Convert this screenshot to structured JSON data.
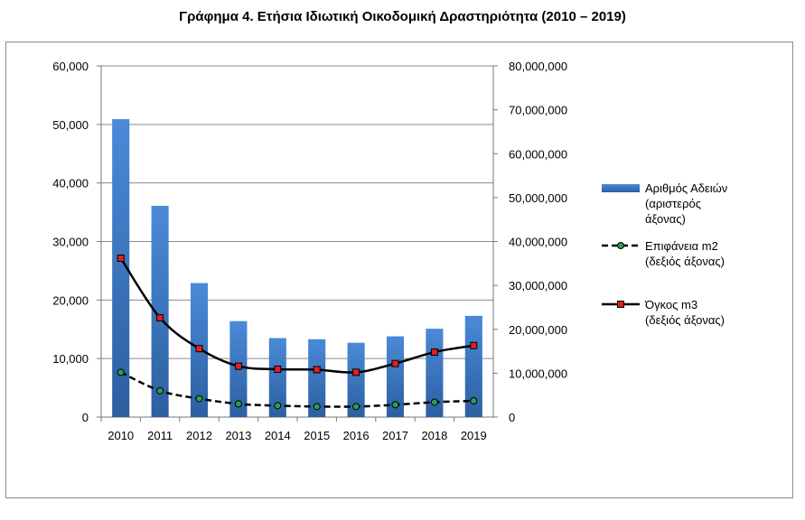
{
  "chart_data": {
    "type": "bar",
    "title": "Γράφημα 4. Ετήσια Ιδιωτική Οικοδομική Δραστηριότητα (2010 – 2019)",
    "categories": [
      "2010",
      "2011",
      "2012",
      "2013",
      "2014",
      "2015",
      "2016",
      "2017",
      "2018",
      "2019"
    ],
    "y_left": {
      "min": 0,
      "max": 60000,
      "ticks": [
        "0",
        "10,000",
        "20,000",
        "30,000",
        "40,000",
        "50,000",
        "60,000"
      ]
    },
    "y_right": {
      "min": 0,
      "max": 80000000,
      "ticks": [
        "0",
        "10,000,000",
        "20,000,000",
        "30,000,000",
        "40,000,000",
        "50,000,000",
        "60,000,000",
        "70,000,000",
        "80,000,000"
      ]
    },
    "grid": true,
    "legend_position": "right",
    "series": [
      {
        "name": "Αριθμός Αδειών (αριστερός άξονας)",
        "legend_lines": [
          "Αριθμός Αδειών",
          "(αριστερός",
          "άξονας)"
        ],
        "type": "bar",
        "axis": "left",
        "color": "#3f7fc9",
        "values": [
          50900,
          36100,
          22900,
          16400,
          13500,
          13300,
          12700,
          13800,
          15100,
          17300
        ]
      },
      {
        "name": "Επιφάνεια m2 (δεξιός άξονας)",
        "legend_lines": [
          "Επιφάνεια m2",
          "(δεξιός άξονας)"
        ],
        "type": "line",
        "style": "dashed",
        "axis": "right",
        "color": "#000000",
        "marker_color": "#2e9e4f",
        "values": [
          10200000,
          6000000,
          4200000,
          3000000,
          2600000,
          2400000,
          2400000,
          2800000,
          3400000,
          3700000
        ]
      },
      {
        "name": "Όγκος m3 (δεξιός άξονας)",
        "legend_lines": [
          "Όγκος m3",
          "(δεξιός άξονας)"
        ],
        "type": "line",
        "style": "solid",
        "axis": "right",
        "color": "#000000",
        "marker_color": "#e02020",
        "values": [
          36200000,
          22600000,
          15600000,
          11600000,
          10900000,
          10800000,
          10200000,
          12200000,
          14800000,
          16300000
        ]
      }
    ]
  }
}
